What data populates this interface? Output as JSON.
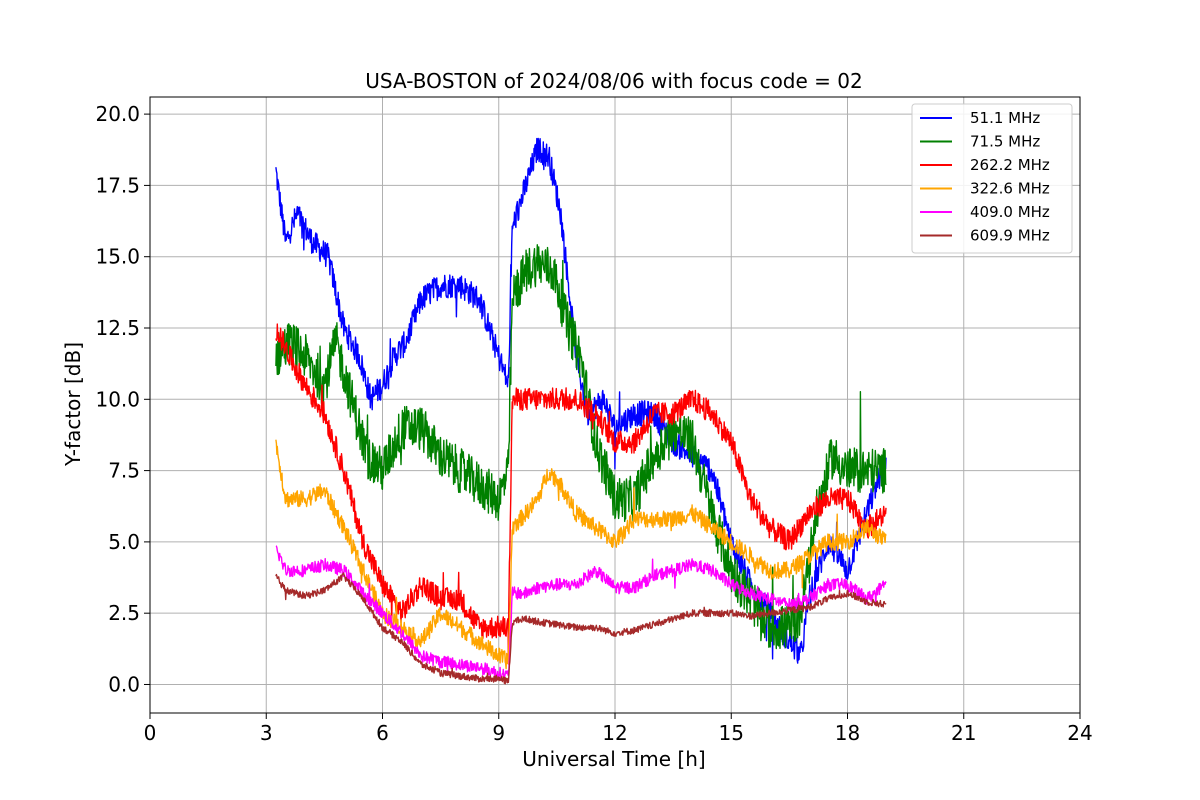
{
  "chart_data": {
    "type": "line",
    "title": "USA-BOSTON of 2024/08/06 with focus code = 02",
    "xlabel": "Universal Time [h]",
    "ylabel": "Y-factor [dB]",
    "xlim": [
      0,
      24
    ],
    "ylim": [
      -1.0,
      20.6
    ],
    "xticks": [
      0,
      3,
      6,
      9,
      12,
      15,
      18,
      21,
      24
    ],
    "xtick_labels": [
      "0",
      "3",
      "6",
      "9",
      "12",
      "15",
      "18",
      "21",
      "24"
    ],
    "yticks": [
      0,
      2.5,
      5,
      7.5,
      10,
      12.5,
      15,
      17.5,
      20
    ],
    "ytick_labels": [
      "0.0",
      "2.5",
      "5.0",
      "7.5",
      "10.0",
      "12.5",
      "15.0",
      "17.5",
      "20.0"
    ],
    "grid": true,
    "legend_position": "top-right",
    "series": [
      {
        "name": "51.1 MHz",
        "color": "#0000ff",
        "noise": 0.45,
        "x": [
          3.25,
          3.5,
          3.8,
          4.2,
          4.6,
          5.0,
          5.4,
          5.7,
          6.0,
          6.3,
          6.6,
          7.0,
          7.5,
          8.0,
          8.5,
          9.0,
          9.25,
          9.35,
          9.7,
          10.0,
          10.3,
          10.6,
          11.0,
          11.3,
          11.7,
          12.0,
          12.5,
          13.0,
          13.5,
          14.0,
          14.5,
          15.0,
          15.5,
          16.0,
          16.5,
          16.8,
          17.0,
          17.5,
          18.0,
          18.5,
          19.0
        ],
        "y": [
          18.0,
          15.5,
          16.5,
          15.5,
          15.0,
          12.5,
          11.5,
          10.0,
          10.5,
          11.5,
          12.0,
          13.5,
          14.0,
          14.0,
          13.5,
          11.5,
          10.5,
          16.0,
          17.5,
          18.8,
          18.5,
          16.5,
          11.5,
          9.5,
          10.0,
          9.0,
          9.5,
          9.5,
          8.5,
          8.0,
          7.5,
          5.0,
          3.5,
          2.5,
          1.5,
          1.0,
          3.0,
          5.0,
          4.0,
          6.0,
          8.0
        ]
      },
      {
        "name": "71.5 MHz",
        "color": "#008000",
        "noise": 0.8,
        "x": [
          3.25,
          3.6,
          4.0,
          4.5,
          4.8,
          5.2,
          5.6,
          6.0,
          6.5,
          7.0,
          7.5,
          8.0,
          8.5,
          9.0,
          9.25,
          9.35,
          9.7,
          10.0,
          10.4,
          10.8,
          11.1,
          11.5,
          12.0,
          12.5,
          13.0,
          13.5,
          14.0,
          14.5,
          15.0,
          15.5,
          16.0,
          16.5,
          16.8,
          17.2,
          17.6,
          18.0,
          18.5,
          19.0
        ],
        "y": [
          11.5,
          12.0,
          11.5,
          10.5,
          12.0,
          10.0,
          8.0,
          7.5,
          9.0,
          9.0,
          8.0,
          7.5,
          7.0,
          6.5,
          7.5,
          13.5,
          14.5,
          14.8,
          14.5,
          12.5,
          11.5,
          8.5,
          6.5,
          6.5,
          8.0,
          9.0,
          8.5,
          6.0,
          4.0,
          3.0,
          2.0,
          2.0,
          2.5,
          6.0,
          8.0,
          7.5,
          7.5,
          7.5
        ]
      },
      {
        "name": "262.2 MHz",
        "color": "#ff0000",
        "noise": 0.4,
        "x": [
          3.25,
          3.6,
          4.0,
          4.5,
          5.0,
          5.5,
          6.0,
          6.5,
          7.0,
          7.5,
          8.0,
          8.5,
          9.0,
          9.25,
          9.35,
          9.7,
          10.0,
          10.5,
          11.0,
          11.5,
          12.0,
          12.5,
          13.0,
          13.5,
          14.0,
          14.5,
          15.0,
          15.5,
          16.0,
          16.5,
          17.0,
          17.5,
          18.0,
          18.5,
          19.0
        ],
        "y": [
          12.5,
          11.5,
          10.5,
          9.5,
          7.5,
          5.0,
          3.5,
          2.5,
          3.5,
          3.0,
          3.0,
          2.0,
          2.0,
          2.0,
          10.0,
          10.0,
          10.0,
          10.0,
          10.0,
          9.5,
          8.5,
          8.5,
          9.5,
          9.5,
          10.0,
          9.5,
          8.5,
          6.5,
          5.5,
          5.0,
          6.0,
          6.5,
          6.5,
          5.5,
          6.0
        ]
      },
      {
        "name": "322.6 MHz",
        "color": "#ffa500",
        "noise": 0.3,
        "x": [
          3.25,
          3.5,
          4.0,
          4.5,
          5.0,
          5.5,
          6.0,
          6.5,
          7.0,
          7.5,
          8.0,
          8.5,
          9.0,
          9.25,
          9.35,
          9.7,
          10.0,
          10.3,
          10.6,
          11.0,
          11.5,
          12.0,
          12.5,
          13.0,
          13.5,
          14.0,
          14.5,
          15.0,
          15.5,
          16.0,
          16.5,
          17.0,
          17.5,
          18.0,
          18.5,
          19.0
        ],
        "y": [
          8.5,
          6.5,
          6.5,
          6.8,
          5.5,
          4.0,
          2.5,
          2.0,
          1.5,
          2.5,
          2.0,
          1.5,
          1.0,
          0.8,
          5.5,
          6.0,
          6.5,
          7.5,
          7.0,
          6.0,
          5.5,
          5.0,
          5.8,
          5.8,
          5.8,
          6.0,
          5.5,
          5.0,
          4.5,
          4.0,
          4.0,
          4.5,
          5.0,
          5.0,
          5.5,
          5.0
        ]
      },
      {
        "name": "409.0 MHz",
        "color": "#ff00ff",
        "noise": 0.22,
        "x": [
          3.25,
          3.5,
          4.0,
          4.5,
          5.0,
          5.5,
          6.0,
          6.5,
          7.0,
          7.5,
          8.0,
          8.5,
          9.0,
          9.25,
          9.35,
          9.7,
          10.0,
          10.5,
          11.0,
          11.5,
          12.0,
          12.5,
          13.0,
          13.5,
          14.0,
          14.5,
          15.0,
          15.5,
          16.0,
          16.5,
          17.0,
          17.5,
          18.0,
          18.5,
          19.0
        ],
        "y": [
          4.8,
          4.0,
          4.0,
          4.2,
          4.0,
          3.2,
          2.5,
          1.8,
          1.0,
          0.8,
          0.7,
          0.6,
          0.4,
          0.3,
          3.2,
          3.2,
          3.4,
          3.5,
          3.5,
          4.0,
          3.4,
          3.4,
          3.8,
          4.0,
          4.2,
          4.0,
          3.5,
          3.2,
          3.0,
          2.8,
          3.0,
          3.5,
          3.5,
          3.0,
          3.5
        ]
      },
      {
        "name": "609.9 MHz",
        "color": "#a52a2a",
        "noise": 0.12,
        "x": [
          3.25,
          3.5,
          4.0,
          4.5,
          5.0,
          5.5,
          6.0,
          6.5,
          7.0,
          7.5,
          8.0,
          8.5,
          9.0,
          9.25,
          9.35,
          9.7,
          10.0,
          10.5,
          11.0,
          11.5,
          12.0,
          12.5,
          13.0,
          13.5,
          14.0,
          14.5,
          15.0,
          15.5,
          16.0,
          16.5,
          17.0,
          17.5,
          18.0,
          18.5,
          19.0
        ],
        "y": [
          3.8,
          3.3,
          3.1,
          3.3,
          3.8,
          3.0,
          2.0,
          1.5,
          0.7,
          0.4,
          0.3,
          0.2,
          0.2,
          0.1,
          2.2,
          2.3,
          2.2,
          2.1,
          2.0,
          2.0,
          1.8,
          1.9,
          2.1,
          2.3,
          2.5,
          2.5,
          2.5,
          2.4,
          2.5,
          2.6,
          2.7,
          3.0,
          3.2,
          2.9,
          2.8
        ]
      }
    ]
  }
}
